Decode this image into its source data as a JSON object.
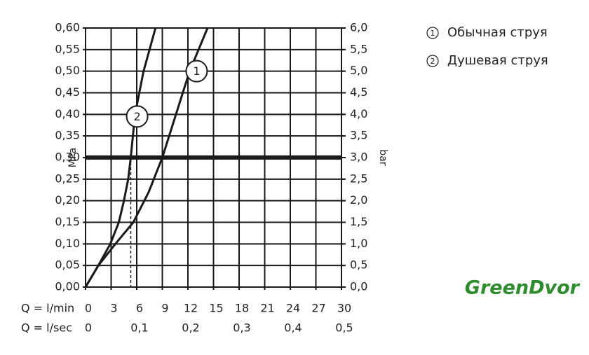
{
  "chart_data": {
    "type": "line",
    "x_label": "Q = l/min",
    "x2_label": "Q = l/sec",
    "y_label": "MPa",
    "y2_label": "bar",
    "xlim": [
      0,
      30
    ],
    "xticks": [
      0,
      3,
      6,
      9,
      12,
      15,
      18,
      21,
      24,
      27,
      30
    ],
    "x2lim": [
      0,
      0.5
    ],
    "x2ticks": [
      {
        "value": 0,
        "label": "0"
      },
      {
        "value": 0.1,
        "label": "0,1"
      },
      {
        "value": 0.2,
        "label": "0,2"
      },
      {
        "value": 0.3,
        "label": "0,3"
      },
      {
        "value": 0.4,
        "label": "0,4"
      },
      {
        "value": 0.5,
        "label": "0,5"
      }
    ],
    "ylim": [
      0,
      0.6
    ],
    "yticks": [
      {
        "value": 0,
        "label": "0,00"
      },
      {
        "value": 0.05,
        "label": "0,05"
      },
      {
        "value": 0.1,
        "label": "0,10"
      },
      {
        "value": 0.15,
        "label": "0,15"
      },
      {
        "value": 0.2,
        "label": "0,20"
      },
      {
        "value": 0.25,
        "label": "0,25"
      },
      {
        "value": 0.3,
        "label": "0,30"
      },
      {
        "value": 0.35,
        "label": "0,35"
      },
      {
        "value": 0.4,
        "label": "0,40"
      },
      {
        "value": 0.45,
        "label": "0,45"
      },
      {
        "value": 0.5,
        "label": "0,50"
      },
      {
        "value": 0.55,
        "label": "0,55"
      },
      {
        "value": 0.6,
        "label": "0,60"
      }
    ],
    "y2lim": [
      0,
      6
    ],
    "y2ticks": [
      {
        "value": 0,
        "label": "0,0"
      },
      {
        "value": 0.5,
        "label": "0,5"
      },
      {
        "value": 1,
        "label": "1,0"
      },
      {
        "value": 1.5,
        "label": "1,5"
      },
      {
        "value": 2,
        "label": "2,0"
      },
      {
        "value": 2.5,
        "label": "2,5"
      },
      {
        "value": 3,
        "label": "3,0"
      },
      {
        "value": 3.5,
        "label": "3,5"
      },
      {
        "value": 4,
        "label": "4,0"
      },
      {
        "value": 4.5,
        "label": "4,5"
      },
      {
        "value": 5,
        "label": "5,0"
      },
      {
        "value": 5.5,
        "label": "5,5"
      },
      {
        "value": 6,
        "label": "6,0"
      }
    ],
    "grid": true,
    "reference_y": 0.3,
    "color": "#1a1a1a",
    "series": [
      {
        "name": "Обычная струя",
        "label": "1",
        "x": [
          0,
          1.5,
          3.5,
          5.6,
          7.4,
          9,
          10.6,
          12.2,
          14.3
        ],
        "values": [
          0,
          0.05,
          0.1,
          0.15,
          0.22,
          0.3,
          0.4,
          0.5,
          0.6
        ]
      },
      {
        "name": "Душевая струя",
        "label": "2",
        "x": [
          0,
          1.5,
          2.9,
          3.9,
          4.5,
          5,
          5.3,
          5.8,
          6.8,
          8.2
        ],
        "values": [
          0,
          0.05,
          0.1,
          0.15,
          0.2,
          0.25,
          0.3,
          0.4,
          0.5,
          0.6
        ]
      }
    ],
    "watermark": "GreenDvor"
  }
}
